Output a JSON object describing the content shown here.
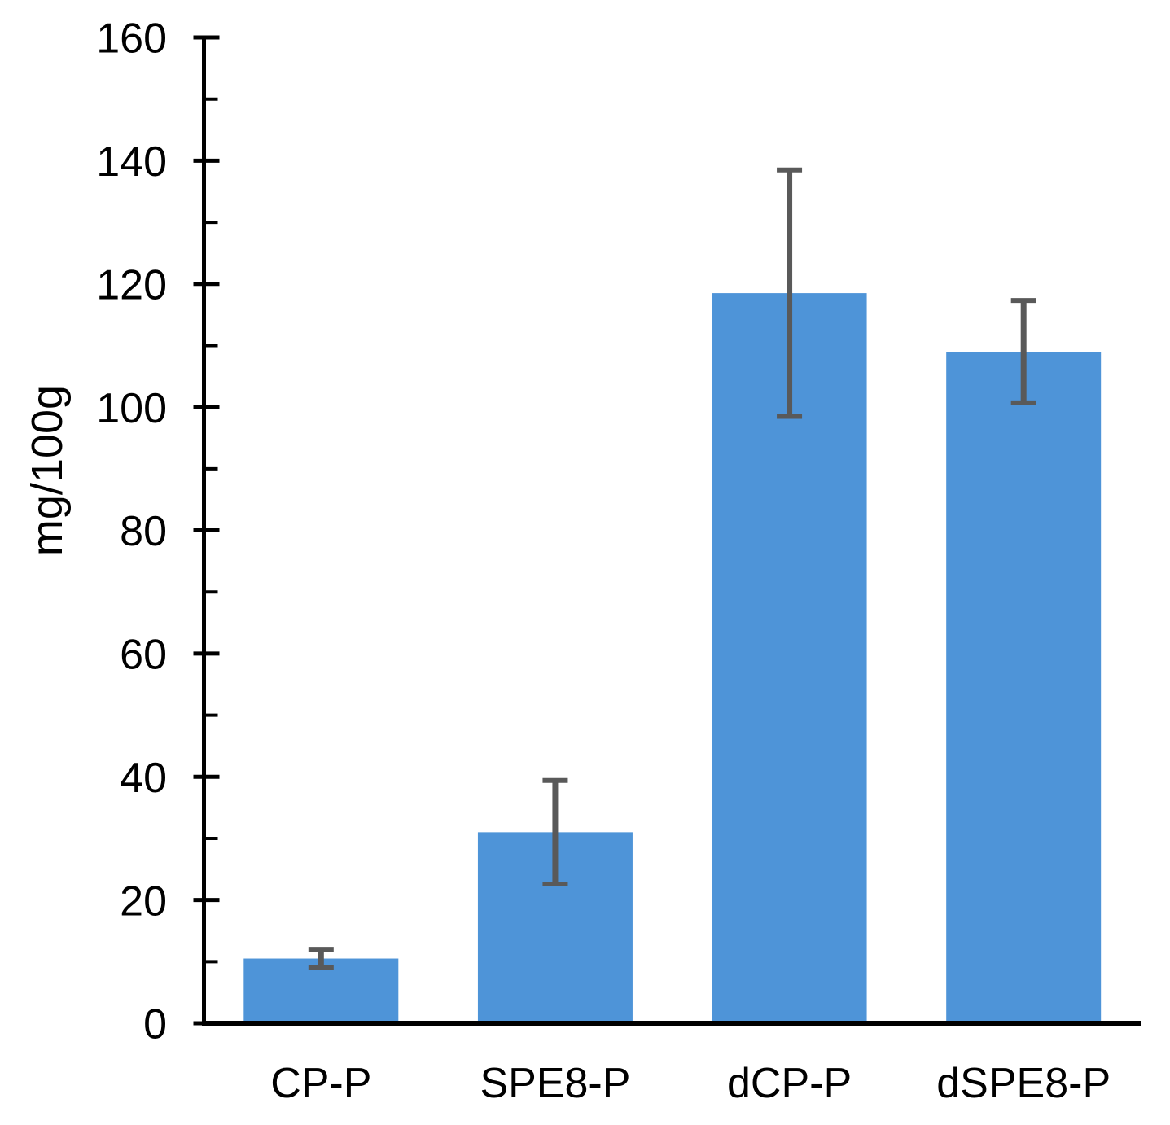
{
  "chart_data": {
    "type": "bar",
    "title": "",
    "xlabel": "",
    "ylabel": "mg/100g",
    "categories": [
      "CP-P",
      "SPE8-P",
      "dCP-P",
      "dSPE8-P"
    ],
    "values": [
      10.5,
      31,
      118.5,
      109
    ],
    "error_bars": {
      "plus": [
        1.5,
        8.4,
        20,
        8.3
      ],
      "minus": [
        1.5,
        8.4,
        20,
        8.3
      ]
    },
    "ylim": [
      0,
      160
    ],
    "y_major_step": 20,
    "y_minor_step": 10,
    "y_major_tick_labels": [
      "0",
      "20",
      "40",
      "60",
      "80",
      "100",
      "120",
      "140",
      "160"
    ],
    "grid": "off",
    "legend": "none",
    "colors": {
      "bar_fill": "#4E94D8",
      "error_bar": "#595959",
      "axis": "#000000",
      "text": "#000000",
      "background": "#FFFFFF"
    }
  }
}
